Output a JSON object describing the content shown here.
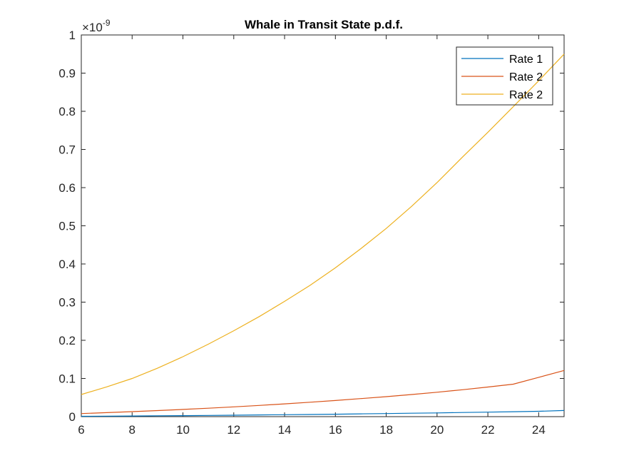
{
  "chart_data": {
    "type": "line",
    "title": "Whale in Transit State p.d.f.",
    "xlabel": "",
    "ylabel": "",
    "xlim": [
      6,
      25
    ],
    "ylim": [
      0,
      1
    ],
    "y_exponent_label": "×10",
    "y_exponent_power": "-9",
    "x_ticks": [
      "6",
      "8",
      "10",
      "12",
      "14",
      "16",
      "18",
      "20",
      "22",
      "24"
    ],
    "x_tick_values": [
      6,
      8,
      10,
      12,
      14,
      16,
      18,
      20,
      22,
      24
    ],
    "y_ticks": [
      "0",
      "0.1",
      "0.2",
      "0.3",
      "0.4",
      "0.5",
      "0.6",
      "0.7",
      "0.8",
      "0.9",
      "1"
    ],
    "y_tick_values": [
      0,
      0.1,
      0.2,
      0.3,
      0.4,
      0.5,
      0.6,
      0.7,
      0.8,
      0.9,
      1
    ],
    "grid": false,
    "legend_position": "top-right",
    "x": [
      6,
      7,
      8,
      9,
      10,
      11,
      12,
      13,
      14,
      15,
      16,
      17,
      18,
      19,
      20,
      21,
      22,
      23,
      24,
      25
    ],
    "series": [
      {
        "name": "Rate 1",
        "color": "#0072BD",
        "values": [
          0.001,
          0.0013,
          0.0017,
          0.0022,
          0.0027,
          0.0032,
          0.0038,
          0.0044,
          0.005,
          0.0057,
          0.0064,
          0.0072,
          0.008,
          0.0089,
          0.0098,
          0.0108,
          0.0118,
          0.0129,
          0.014,
          0.016
        ]
      },
      {
        "name": "Rate 2",
        "color": "#D95319",
        "values": [
          0.008,
          0.0105,
          0.013,
          0.0158,
          0.0188,
          0.0221,
          0.0256,
          0.0294,
          0.0334,
          0.0377,
          0.0423,
          0.0472,
          0.0524,
          0.058,
          0.064,
          0.0705,
          0.0775,
          0.085,
          0.103,
          0.121
        ]
      },
      {
        "name": "Rate 2",
        "color": "#EDB120",
        "values": [
          0.058,
          0.078,
          0.1,
          0.127,
          0.157,
          0.19,
          0.225,
          0.262,
          0.302,
          0.344,
          0.39,
          0.44,
          0.493,
          0.551,
          0.613,
          0.68,
          0.745,
          0.812,
          0.88,
          0.95
        ]
      }
    ]
  }
}
